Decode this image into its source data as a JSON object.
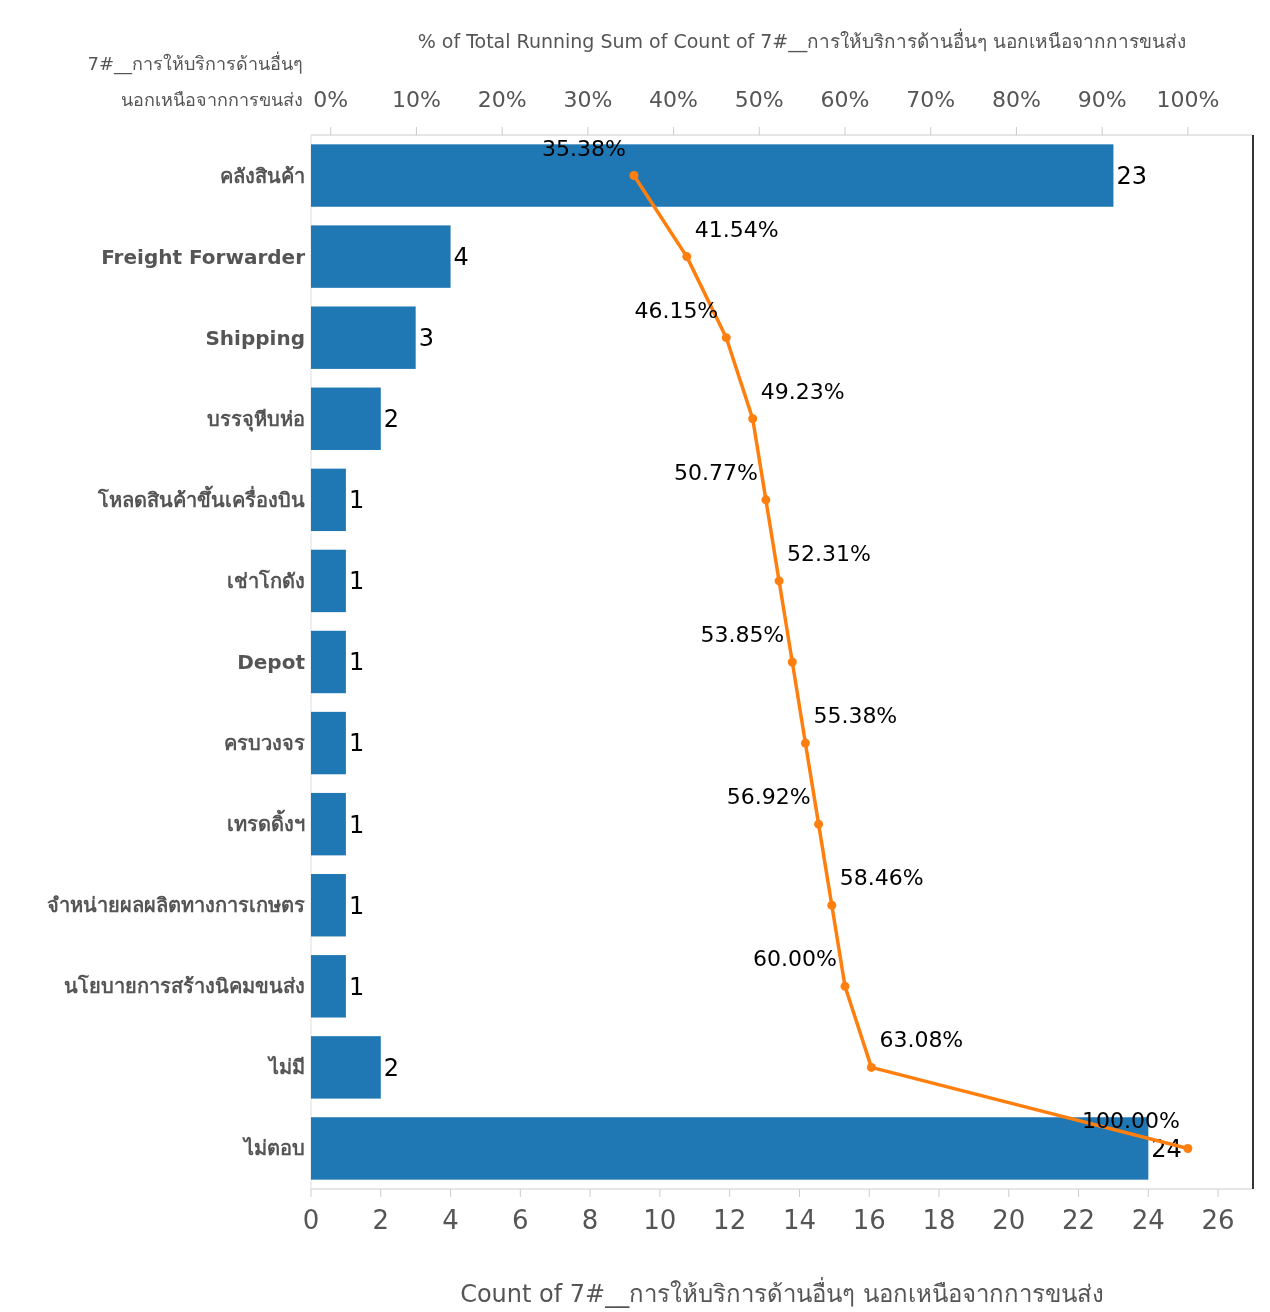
{
  "chart_data": {
    "type": "bar",
    "orientation": "horizontal",
    "ylabel": "7#__การให้บริการด้านอื่นๆ นอกเหนือจากการขนส่ง",
    "xlabel": "Count of 7#__การให้บริการด้านอื่นๆ นอกเหนือจากการขนส่ง",
    "x2label": "% of Total Running Sum of Count of 7#__การให้บริการด้านอื่นๆ นอกเหนือจากการขนส่ง",
    "categories": [
      "คลังสินค้า",
      "Freight Forwarder",
      "Shipping",
      "บรรจุหีบห่อ",
      "โหลดสินค้าขึ้นเครื่องบิน",
      "เช่าโกดัง",
      "Depot",
      "ครบวงจร",
      "เทรดดิ้งฯ",
      "จำหน่ายผลผลิตทางการเกษตร",
      "นโยบายการสร้างนิคมขนส่ง",
      "ไม่มี",
      "ไม่ตอบ"
    ],
    "series": [
      {
        "color": "#1f77b4",
        "values": [
          23,
          4,
          3,
          2,
          1,
          1,
          1,
          1,
          1,
          1,
          1,
          2,
          24
        ]
      },
      {
        "type": "line",
        "axis": "x2",
        "color": "#ff7f0e",
        "marker": "circle",
        "values": [
          35.38,
          41.54,
          46.15,
          49.23,
          50.77,
          52.31,
          53.85,
          55.38,
          56.92,
          58.46,
          60.0,
          63.08,
          100.0
        ],
        "value_labels": [
          "35.38%",
          "41.54%",
          "46.15%",
          "49.23%",
          "50.77%",
          "52.31%",
          "53.85%",
          "55.38%",
          "56.92%",
          "58.46%",
          "60.00%",
          "63.08%",
          "100.00%"
        ]
      }
    ],
    "data_labels": true,
    "grid": false,
    "xlim": [
      0,
      27
    ],
    "xticks": [
      0,
      2,
      4,
      6,
      8,
      10,
      12,
      14,
      16,
      18,
      20,
      22,
      24,
      26
    ],
    "x2lim": [
      -2.3,
      107.6
    ],
    "x2ticks": [
      {
        "value": 0,
        "label": "0%"
      },
      {
        "value": 10,
        "label": "10%"
      },
      {
        "value": 20,
        "label": "20%"
      },
      {
        "value": 30,
        "label": "30%"
      },
      {
        "value": 40,
        "label": "40%"
      },
      {
        "value": 50,
        "label": "50%"
      },
      {
        "value": 60,
        "label": "60%"
      },
      {
        "value": 70,
        "label": "70%"
      },
      {
        "value": 80,
        "label": "80%"
      },
      {
        "value": 90,
        "label": "90%"
      },
      {
        "value": 100,
        "label": "100%"
      }
    ]
  }
}
